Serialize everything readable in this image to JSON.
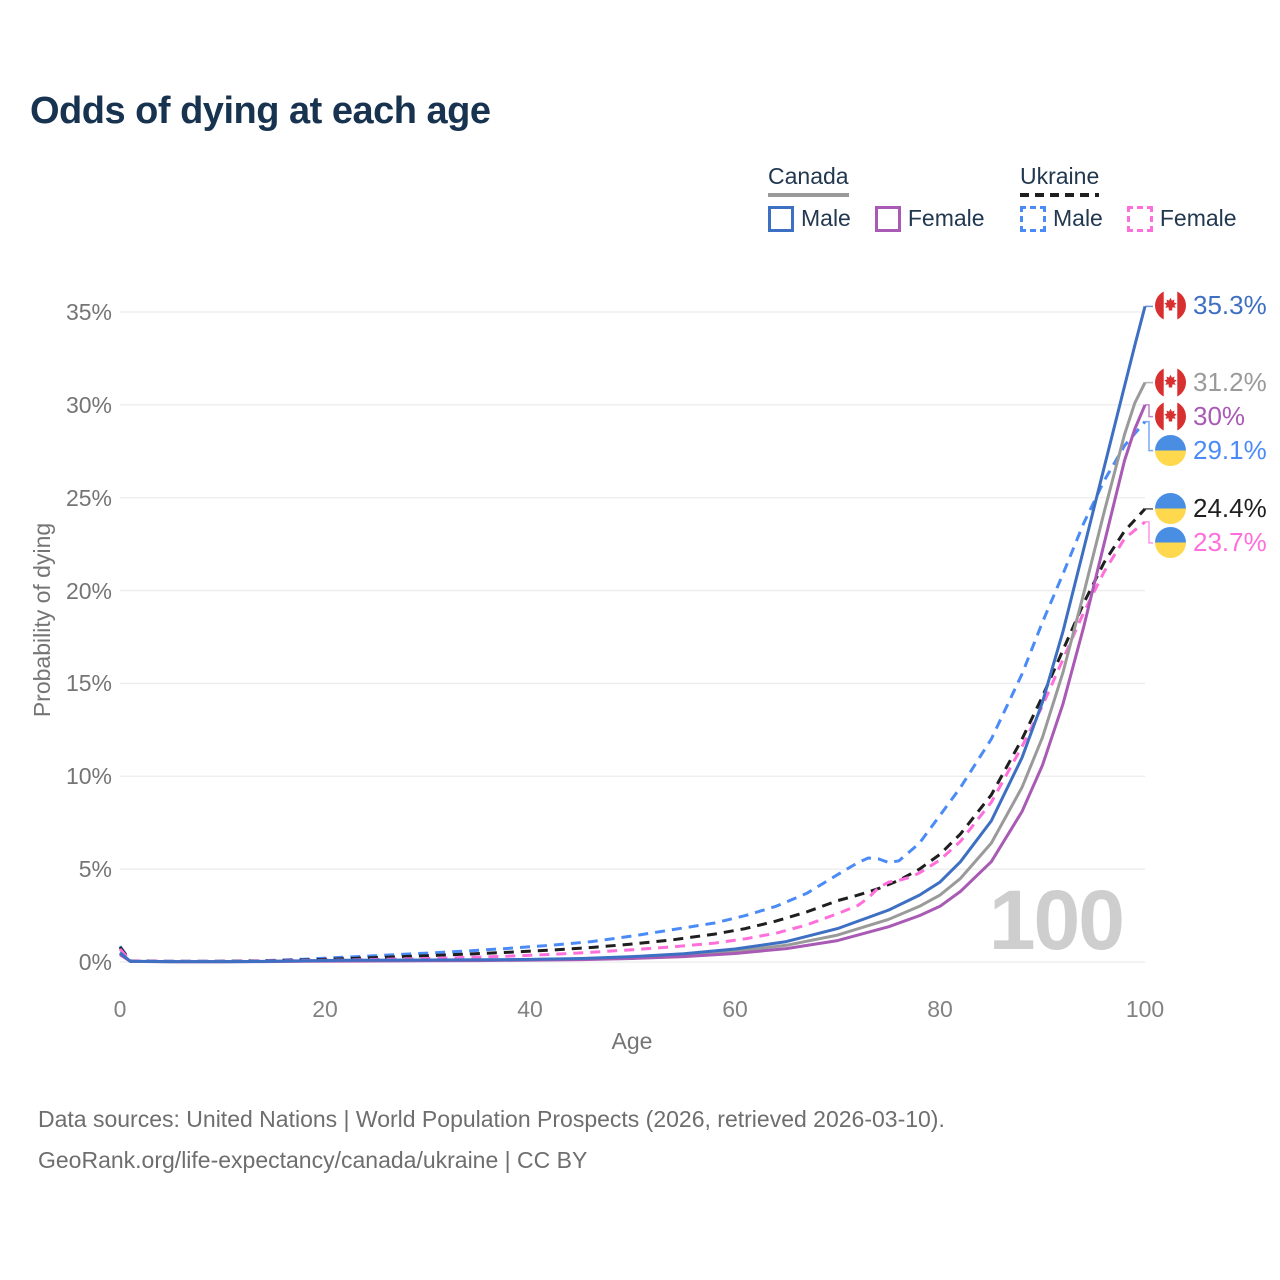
{
  "title": "Odds of dying at each age",
  "watermark": "100",
  "legend": {
    "groups": [
      {
        "name": "Canada",
        "underline": "solid",
        "color": "#9a9a9a",
        "items": [
          {
            "label": "Male",
            "color": "#3d6fc2",
            "dash": false
          },
          {
            "label": "Female",
            "color": "#a95ab4",
            "dash": false
          }
        ]
      },
      {
        "name": "Ukraine",
        "underline": "dashed",
        "color": "#1f1f1f",
        "items": [
          {
            "label": "Male",
            "color": "#4b8bf7",
            "dash": true
          },
          {
            "label": "Female",
            "color": "#ff6fdb",
            "dash": true
          }
        ]
      }
    ]
  },
  "chart_data": {
    "type": "line",
    "title": "Odds of dying at each age",
    "xlabel": "Age",
    "ylabel": "Probability of dying",
    "xlim": [
      0,
      100
    ],
    "ylim": [
      0,
      35
    ],
    "grid": true,
    "x_ticks": [
      0,
      20,
      40,
      60,
      80,
      100
    ],
    "y_ticks": [
      {
        "v": 0,
        "label": "0%"
      },
      {
        "v": 5,
        "label": "5%"
      },
      {
        "v": 10,
        "label": "10%"
      },
      {
        "v": 15,
        "label": "15%"
      },
      {
        "v": 20,
        "label": "20%"
      },
      {
        "v": 25,
        "label": "25%"
      },
      {
        "v": 30,
        "label": "30%"
      },
      {
        "v": 35,
        "label": "35%"
      }
    ],
    "series": [
      {
        "id": "canada-male",
        "country": "Canada",
        "sex": "Male",
        "color": "#3d6fc2",
        "dash": false,
        "flag": "canada",
        "end_label": "35.3%",
        "points": [
          [
            0,
            0.5
          ],
          [
            1,
            0.04
          ],
          [
            5,
            0.02
          ],
          [
            10,
            0.02
          ],
          [
            14,
            0.03
          ],
          [
            18,
            0.07
          ],
          [
            22,
            0.09
          ],
          [
            26,
            0.1
          ],
          [
            30,
            0.11
          ],
          [
            35,
            0.12
          ],
          [
            40,
            0.14
          ],
          [
            45,
            0.19
          ],
          [
            50,
            0.29
          ],
          [
            55,
            0.44
          ],
          [
            60,
            0.7
          ],
          [
            65,
            1.1
          ],
          [
            70,
            1.8
          ],
          [
            75,
            2.8
          ],
          [
            78,
            3.6
          ],
          [
            80,
            4.3
          ],
          [
            82,
            5.4
          ],
          [
            85,
            7.6
          ],
          [
            88,
            11
          ],
          [
            90,
            14
          ],
          [
            92,
            17.8
          ],
          [
            94,
            22.2
          ],
          [
            96,
            26.6
          ],
          [
            98,
            31
          ],
          [
            99,
            33.2
          ],
          [
            100,
            35.3
          ]
        ]
      },
      {
        "id": "canada-total",
        "country": "Canada",
        "sex": "Both",
        "color": "#9a9a9a",
        "dash": false,
        "flag": "canada",
        "end_label": "31.2%",
        "points": [
          [
            0,
            0.45
          ],
          [
            1,
            0.035
          ],
          [
            5,
            0.017
          ],
          [
            10,
            0.017
          ],
          [
            14,
            0.027
          ],
          [
            18,
            0.055
          ],
          [
            22,
            0.07
          ],
          [
            26,
            0.08
          ],
          [
            30,
            0.09
          ],
          [
            35,
            0.1
          ],
          [
            40,
            0.12
          ],
          [
            45,
            0.16
          ],
          [
            50,
            0.24
          ],
          [
            55,
            0.37
          ],
          [
            60,
            0.58
          ],
          [
            65,
            0.9
          ],
          [
            70,
            1.45
          ],
          [
            75,
            2.3
          ],
          [
            78,
            3
          ],
          [
            80,
            3.6
          ],
          [
            82,
            4.5
          ],
          [
            85,
            6.4
          ],
          [
            88,
            9.4
          ],
          [
            90,
            12.1
          ],
          [
            92,
            15.6
          ],
          [
            94,
            19.8
          ],
          [
            96,
            24.2
          ],
          [
            98,
            28.4
          ],
          [
            99,
            30.1
          ],
          [
            100,
            31.2
          ]
        ]
      },
      {
        "id": "canada-female",
        "country": "Canada",
        "sex": "Female",
        "color": "#a95ab4",
        "dash": false,
        "flag": "canada",
        "end_label": "30%",
        "points": [
          [
            0,
            0.4
          ],
          [
            1,
            0.03
          ],
          [
            5,
            0.014
          ],
          [
            10,
            0.014
          ],
          [
            14,
            0.022
          ],
          [
            18,
            0.04
          ],
          [
            22,
            0.05
          ],
          [
            26,
            0.055
          ],
          [
            30,
            0.065
          ],
          [
            35,
            0.075
          ],
          [
            40,
            0.1
          ],
          [
            45,
            0.13
          ],
          [
            50,
            0.19
          ],
          [
            55,
            0.29
          ],
          [
            60,
            0.46
          ],
          [
            65,
            0.72
          ],
          [
            70,
            1.15
          ],
          [
            75,
            1.9
          ],
          [
            78,
            2.5
          ],
          [
            80,
            3
          ],
          [
            82,
            3.8
          ],
          [
            85,
            5.4
          ],
          [
            88,
            8.1
          ],
          [
            90,
            10.6
          ],
          [
            92,
            13.9
          ],
          [
            94,
            18
          ],
          [
            96,
            22.5
          ],
          [
            98,
            27
          ],
          [
            99,
            28.7
          ],
          [
            100,
            30
          ]
        ]
      },
      {
        "id": "ukraine-male",
        "country": "Ukraine",
        "sex": "Male",
        "color": "#4b8bf7",
        "dash": true,
        "flag": "ukraine",
        "end_label": "29.1%",
        "points": [
          [
            0,
            0.85
          ],
          [
            1,
            0.06
          ],
          [
            5,
            0.04
          ],
          [
            10,
            0.045
          ],
          [
            14,
            0.07
          ],
          [
            18,
            0.15
          ],
          [
            22,
            0.26
          ],
          [
            26,
            0.37
          ],
          [
            30,
            0.48
          ],
          [
            34,
            0.6
          ],
          [
            38,
            0.74
          ],
          [
            42,
            0.9
          ],
          [
            46,
            1.1
          ],
          [
            50,
            1.4
          ],
          [
            54,
            1.75
          ],
          [
            58,
            2.1
          ],
          [
            61,
            2.5
          ],
          [
            64,
            3
          ],
          [
            67,
            3.7
          ],
          [
            70,
            4.7
          ],
          [
            72,
            5.35
          ],
          [
            73,
            5.6
          ],
          [
            74,
            5.55
          ],
          [
            75,
            5.35
          ],
          [
            76,
            5.45
          ],
          [
            78,
            6.4
          ],
          [
            80,
            7.9
          ],
          [
            82,
            9.4
          ],
          [
            85,
            12
          ],
          [
            88,
            15.5
          ],
          [
            90,
            18.3
          ],
          [
            92,
            20.9
          ],
          [
            94,
            23.6
          ],
          [
            96,
            25.9
          ],
          [
            98,
            27.8
          ],
          [
            100,
            29.1
          ]
        ]
      },
      {
        "id": "ukraine-total",
        "country": "Ukraine",
        "sex": "Both",
        "color": "#1f1f1f",
        "dash": true,
        "flag": "ukraine",
        "end_label": "24.4%",
        "points": [
          [
            0,
            0.8
          ],
          [
            1,
            0.055
          ],
          [
            5,
            0.035
          ],
          [
            10,
            0.04
          ],
          [
            14,
            0.06
          ],
          [
            18,
            0.11
          ],
          [
            22,
            0.18
          ],
          [
            26,
            0.26
          ],
          [
            30,
            0.34
          ],
          [
            34,
            0.43
          ],
          [
            38,
            0.53
          ],
          [
            42,
            0.64
          ],
          [
            46,
            0.78
          ],
          [
            50,
            0.97
          ],
          [
            54,
            1.2
          ],
          [
            58,
            1.5
          ],
          [
            61,
            1.8
          ],
          [
            64,
            2.2
          ],
          [
            67,
            2.7
          ],
          [
            70,
            3.3
          ],
          [
            72,
            3.6
          ],
          [
            74,
            3.95
          ],
          [
            76,
            4.4
          ],
          [
            78,
            5
          ],
          [
            80,
            5.8
          ],
          [
            82,
            6.9
          ],
          [
            85,
            9
          ],
          [
            88,
            12
          ],
          [
            90,
            14.3
          ],
          [
            92,
            16.8
          ],
          [
            94,
            19.3
          ],
          [
            96,
            21.5
          ],
          [
            98,
            23.2
          ],
          [
            100,
            24.4
          ]
        ]
      },
      {
        "id": "ukraine-female",
        "country": "Ukraine",
        "sex": "Female",
        "color": "#ff6fdb",
        "dash": true,
        "flag": "ukraine",
        "end_label": "23.7%",
        "points": [
          [
            0,
            0.7
          ],
          [
            1,
            0.05
          ],
          [
            5,
            0.03
          ],
          [
            10,
            0.033
          ],
          [
            14,
            0.05
          ],
          [
            18,
            0.08
          ],
          [
            22,
            0.11
          ],
          [
            26,
            0.15
          ],
          [
            30,
            0.19
          ],
          [
            34,
            0.25
          ],
          [
            38,
            0.32
          ],
          [
            42,
            0.41
          ],
          [
            46,
            0.52
          ],
          [
            50,
            0.66
          ],
          [
            54,
            0.82
          ],
          [
            58,
            1.02
          ],
          [
            61,
            1.25
          ],
          [
            64,
            1.55
          ],
          [
            67,
            2
          ],
          [
            70,
            2.6
          ],
          [
            72,
            3.05
          ],
          [
            73,
            3.45
          ],
          [
            74,
            4
          ],
          [
            75,
            4.3
          ],
          [
            76,
            4.4
          ],
          [
            77,
            4.55
          ],
          [
            78,
            4.8
          ],
          [
            80,
            5.5
          ],
          [
            82,
            6.5
          ],
          [
            85,
            8.6
          ],
          [
            88,
            11.6
          ],
          [
            90,
            13.8
          ],
          [
            92,
            16.3
          ],
          [
            94,
            18.8
          ],
          [
            96,
            21
          ],
          [
            98,
            22.8
          ],
          [
            100,
            23.7
          ]
        ]
      }
    ]
  },
  "footer": {
    "line1": "Data sources: United Nations | World Population Prospects (2026, retrieved 2026-03-10).",
    "line2": "GeoRank.org/life-expectancy/canada/ukraine | CC BY"
  }
}
